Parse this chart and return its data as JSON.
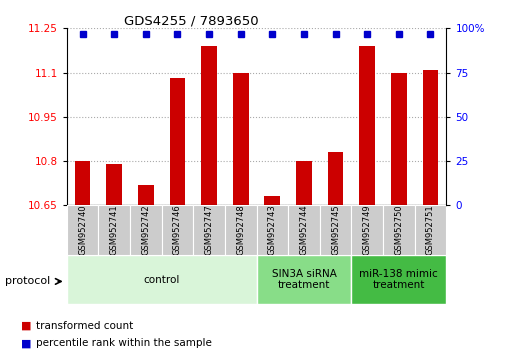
{
  "title": "GDS4255 / 7893650",
  "samples": [
    "GSM952740",
    "GSM952741",
    "GSM952742",
    "GSM952746",
    "GSM952747",
    "GSM952748",
    "GSM952743",
    "GSM952744",
    "GSM952745",
    "GSM952749",
    "GSM952750",
    "GSM952751"
  ],
  "red_values": [
    10.8,
    10.79,
    10.72,
    11.08,
    11.19,
    11.1,
    10.68,
    10.8,
    10.83,
    11.19,
    11.1,
    11.11
  ],
  "ylim_left": [
    10.65,
    11.25
  ],
  "ylim_right": [
    0,
    100
  ],
  "yticks_left": [
    10.65,
    10.8,
    10.95,
    11.1,
    11.25
  ],
  "ytick_labels_left": [
    "10.65",
    "10.8",
    "10.95",
    "11.1",
    "11.25"
  ],
  "yticks_right": [
    0,
    25,
    50,
    75,
    100
  ],
  "ytick_labels_right": [
    "0",
    "25",
    "50",
    "75",
    "100%"
  ],
  "groups": [
    {
      "label": "control",
      "start": 0,
      "end": 6,
      "color": "#d9f5d9"
    },
    {
      "label": "SIN3A siRNA\ntreatment",
      "start": 6,
      "end": 9,
      "color": "#88dd88"
    },
    {
      "label": "miR-138 mimic\ntreatment",
      "start": 9,
      "end": 12,
      "color": "#44bb44"
    }
  ],
  "red_color": "#cc0000",
  "blue_color": "#0000cc",
  "bar_width": 0.5,
  "protocol_label": "protocol",
  "legend_red": "transformed count",
  "legend_blue": "percentile rank within the sample",
  "sample_box_color": "#cccccc",
  "bg_color": "#ffffff"
}
